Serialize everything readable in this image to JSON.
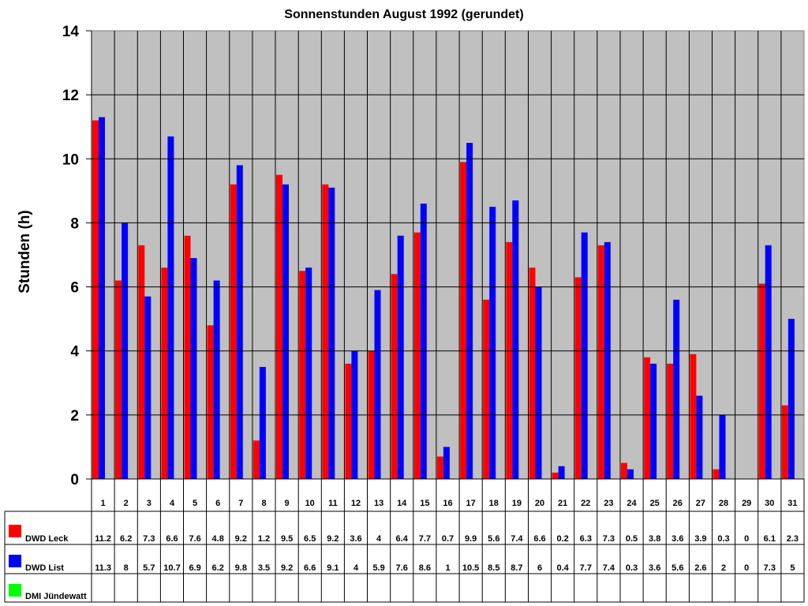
{
  "chart_data": {
    "type": "bar",
    "title": "Sonnenstunden August 1992 (gerundet)",
    "xlabel": "",
    "ylabel": "Stunden (h)",
    "ylim": [
      0,
      14
    ],
    "yticks": [
      0,
      2,
      4,
      6,
      8,
      10,
      12,
      14
    ],
    "grid": true,
    "legend_position": "table-left",
    "categories": [
      "1",
      "2",
      "3",
      "4",
      "5",
      "6",
      "7",
      "8",
      "9",
      "10",
      "11",
      "12",
      "13",
      "14",
      "15",
      "16",
      "17",
      "18",
      "19",
      "20",
      "21",
      "22",
      "23",
      "24",
      "25",
      "26",
      "27",
      "28",
      "29",
      "30",
      "31"
    ],
    "series": [
      {
        "name": "DWD Leck",
        "color": "#ff0000",
        "values": [
          11.2,
          6.2,
          7.3,
          6.6,
          7.6,
          4.8,
          9.2,
          1.2,
          9.5,
          6.5,
          9.2,
          3.6,
          4,
          6.4,
          7.7,
          0.7,
          9.9,
          5.6,
          7.4,
          6.6,
          0.2,
          6.3,
          7.3,
          0.5,
          3.8,
          3.6,
          3.9,
          0.3,
          0,
          6.1,
          2.3
        ]
      },
      {
        "name": "DWD List",
        "color": "#0000ff",
        "values": [
          11.3,
          8,
          5.7,
          10.7,
          6.9,
          6.2,
          9.8,
          3.5,
          9.2,
          6.6,
          9.1,
          4,
          5.9,
          7.6,
          8.6,
          1,
          10.5,
          8.5,
          8.7,
          6,
          0.4,
          7.7,
          7.4,
          0.3,
          3.6,
          5.6,
          2.6,
          2,
          0,
          7.3,
          5
        ]
      },
      {
        "name": "DMI Jündewatt",
        "color": "#00ff00",
        "values": [
          null,
          null,
          null,
          null,
          null,
          null,
          null,
          null,
          null,
          null,
          null,
          null,
          null,
          null,
          null,
          null,
          null,
          null,
          null,
          null,
          null,
          null,
          null,
          null,
          null,
          null,
          null,
          null,
          null,
          null,
          null
        ]
      }
    ]
  },
  "style": {
    "plot_bg": "#c0c0c0"
  }
}
